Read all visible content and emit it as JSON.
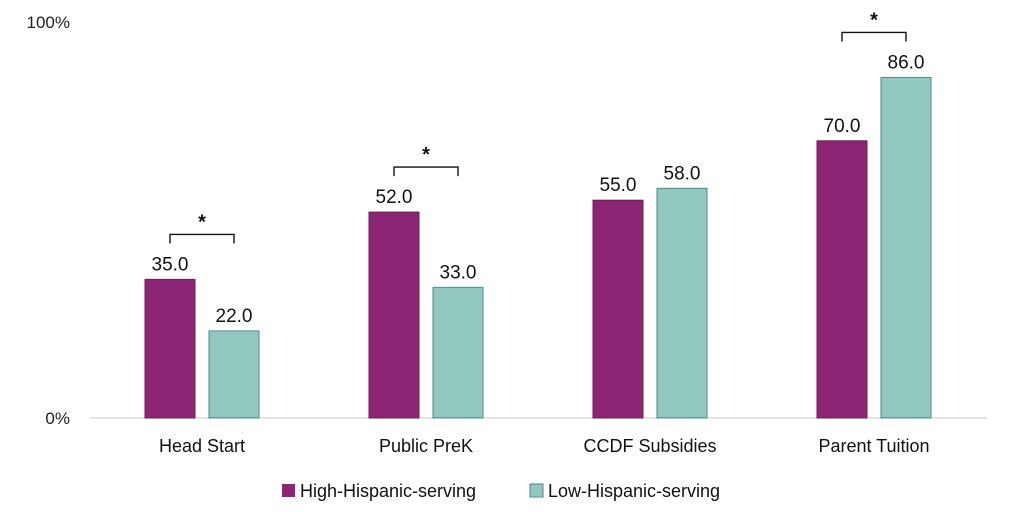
{
  "chart_data": {
    "type": "bar",
    "title": "",
    "xlabel": "",
    "ylabel": "",
    "ylim": [
      0,
      100
    ],
    "y_tick_labels": [
      "0%",
      "100%"
    ],
    "categories": [
      "Head Start",
      "Public PreK",
      "CCDF Subsidies",
      "Parent Tuition"
    ],
    "series": [
      {
        "name": "High-Hispanic-serving",
        "values": [
          35.0,
          52.0,
          55.0,
          70.0
        ],
        "value_labels": [
          "35.0",
          "52.0",
          "55.0",
          "70.0"
        ],
        "color": "#8B2573"
      },
      {
        "name": "Low-Hispanic-serving",
        "values": [
          22.0,
          33.0,
          58.0,
          86.0
        ],
        "value_labels": [
          "22.0",
          "33.0",
          "58.0",
          "86.0"
        ],
        "color": "#9FD1CB",
        "stroke": "#4E8A84"
      }
    ],
    "significance_marker": "*",
    "significant_categories": [
      "Head Start",
      "Public PreK",
      "Parent Tuition"
    ],
    "grid": false,
    "legend_position": "bottom"
  }
}
